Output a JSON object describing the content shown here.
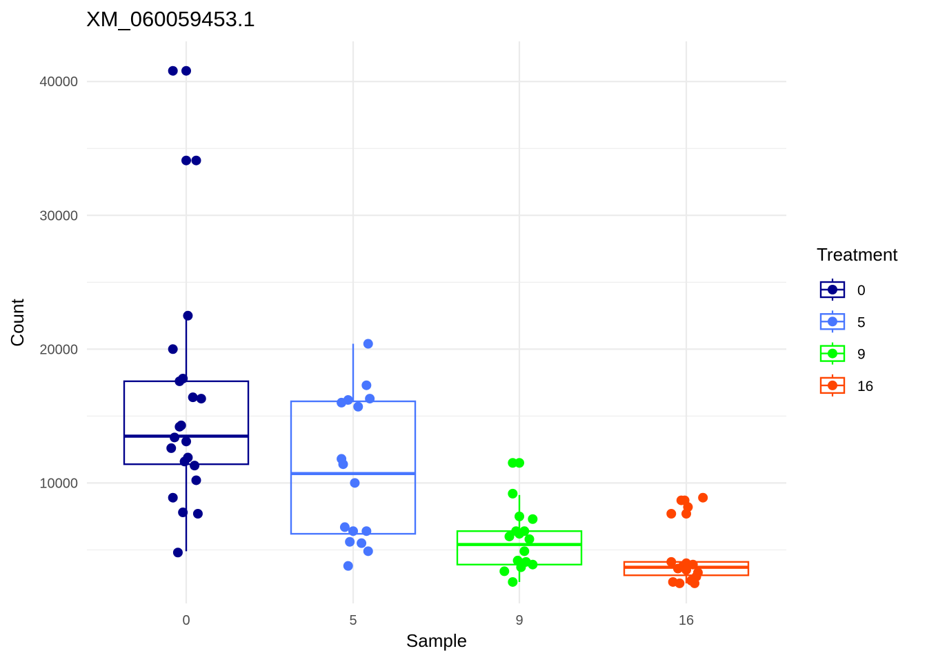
{
  "chart_data": {
    "type": "boxplot",
    "title": "XM_060059453.1",
    "xlabel": "Sample",
    "ylabel": "Count",
    "ylim": [
      1000,
      43000
    ],
    "yticks": [
      10000,
      20000,
      30000,
      40000
    ],
    "yticks_minor": [
      5000,
      15000,
      25000,
      35000
    ],
    "ytick_labels": [
      "10000",
      "20000",
      "30000",
      "40000"
    ],
    "categories": [
      "0",
      "5",
      "9",
      "16"
    ],
    "legend": {
      "title": "Treatment",
      "position": "right",
      "entries": [
        "0",
        "5",
        "9",
        "16"
      ]
    },
    "series": [
      {
        "name": "0",
        "color": "#00008B",
        "box": {
          "lower_whisker": 4900,
          "q1": 11400,
          "median": 13500,
          "q3": 17600,
          "upper_whisker": 22500
        },
        "points": [
          {
            "dx": -0.08,
            "y": 40800
          },
          {
            "dx": 0.0,
            "y": 40800
          },
          {
            "dx": 0.0,
            "y": 34100
          },
          {
            "dx": 0.06,
            "y": 34100
          },
          {
            "dx": 0.01,
            "y": 22500
          },
          {
            "dx": -0.08,
            "y": 20000
          },
          {
            "dx": -0.04,
            "y": 17600
          },
          {
            "dx": -0.02,
            "y": 17800
          },
          {
            "dx": 0.04,
            "y": 16400
          },
          {
            "dx": 0.09,
            "y": 16300
          },
          {
            "dx": -0.04,
            "y": 14200
          },
          {
            "dx": -0.03,
            "y": 14300
          },
          {
            "dx": -0.07,
            "y": 13400
          },
          {
            "dx": 0.0,
            "y": 13100
          },
          {
            "dx": -0.09,
            "y": 12600
          },
          {
            "dx": 0.01,
            "y": 11900
          },
          {
            "dx": -0.01,
            "y": 11600
          },
          {
            "dx": 0.05,
            "y": 11300
          },
          {
            "dx": 0.06,
            "y": 10200
          },
          {
            "dx": -0.08,
            "y": 8900
          },
          {
            "dx": -0.02,
            "y": 7800
          },
          {
            "dx": 0.07,
            "y": 7700
          },
          {
            "dx": -0.05,
            "y": 4800
          }
        ]
      },
      {
        "name": "5",
        "color": "#4876FF",
        "box": {
          "lower_whisker": 6200,
          "q1": 6200,
          "median": 10700,
          "q3": 16100,
          "upper_whisker": 20400
        },
        "points": [
          {
            "dx": 0.09,
            "y": 20400
          },
          {
            "dx": 0.08,
            "y": 17300
          },
          {
            "dx": 0.1,
            "y": 16300
          },
          {
            "dx": -0.03,
            "y": 16200
          },
          {
            "dx": -0.07,
            "y": 16000
          },
          {
            "dx": 0.03,
            "y": 15700
          },
          {
            "dx": -0.07,
            "y": 11800
          },
          {
            "dx": -0.06,
            "y": 11400
          },
          {
            "dx": 0.01,
            "y": 10000
          },
          {
            "dx": -0.05,
            "y": 6700
          },
          {
            "dx": 0.0,
            "y": 6400
          },
          {
            "dx": 0.08,
            "y": 6400
          },
          {
            "dx": -0.02,
            "y": 5600
          },
          {
            "dx": 0.05,
            "y": 5500
          },
          {
            "dx": 0.09,
            "y": 4900
          },
          {
            "dx": -0.03,
            "y": 3800
          }
        ]
      },
      {
        "name": "9",
        "color": "#00FF00",
        "box": {
          "lower_whisker": 2600,
          "q1": 3900,
          "median": 5400,
          "q3": 6400,
          "upper_whisker": 9100
        },
        "points": [
          {
            "dx": -0.04,
            "y": 11500
          },
          {
            "dx": 0.0,
            "y": 11500
          },
          {
            "dx": -0.04,
            "y": 9200
          },
          {
            "dx": 0.0,
            "y": 7500
          },
          {
            "dx": 0.08,
            "y": 7300
          },
          {
            "dx": 0.03,
            "y": 6400
          },
          {
            "dx": -0.02,
            "y": 6400
          },
          {
            "dx": 0.0,
            "y": 6200
          },
          {
            "dx": -0.06,
            "y": 6000
          },
          {
            "dx": 0.06,
            "y": 5800
          },
          {
            "dx": 0.03,
            "y": 4900
          },
          {
            "dx": -0.01,
            "y": 4200
          },
          {
            "dx": 0.04,
            "y": 4100
          },
          {
            "dx": 0.02,
            "y": 4000
          },
          {
            "dx": 0.08,
            "y": 3900
          },
          {
            "dx": 0.01,
            "y": 3700
          },
          {
            "dx": -0.09,
            "y": 3400
          },
          {
            "dx": -0.04,
            "y": 2600
          }
        ]
      },
      {
        "name": "16",
        "color": "#FF4500",
        "box": {
          "lower_whisker": 2500,
          "q1": 3100,
          "median": 3700,
          "q3": 4100,
          "upper_whisker": 4100
        },
        "points": [
          {
            "dx": 0.1,
            "y": 8900
          },
          {
            "dx": -0.03,
            "y": 8700
          },
          {
            "dx": -0.01,
            "y": 8700
          },
          {
            "dx": 0.01,
            "y": 8200
          },
          {
            "dx": 0.0,
            "y": 7700
          },
          {
            "dx": -0.09,
            "y": 7700
          },
          {
            "dx": -0.09,
            "y": 4100
          },
          {
            "dx": 0.0,
            "y": 4000
          },
          {
            "dx": 0.04,
            "y": 3900
          },
          {
            "dx": -0.02,
            "y": 3800
          },
          {
            "dx": -0.05,
            "y": 3600
          },
          {
            "dx": 0.0,
            "y": 3500
          },
          {
            "dx": 0.07,
            "y": 3300
          },
          {
            "dx": 0.06,
            "y": 3000
          },
          {
            "dx": 0.03,
            "y": 2700
          },
          {
            "dx": -0.08,
            "y": 2600
          },
          {
            "dx": 0.05,
            "y": 2500
          },
          {
            "dx": -0.04,
            "y": 2500
          }
        ]
      }
    ]
  }
}
